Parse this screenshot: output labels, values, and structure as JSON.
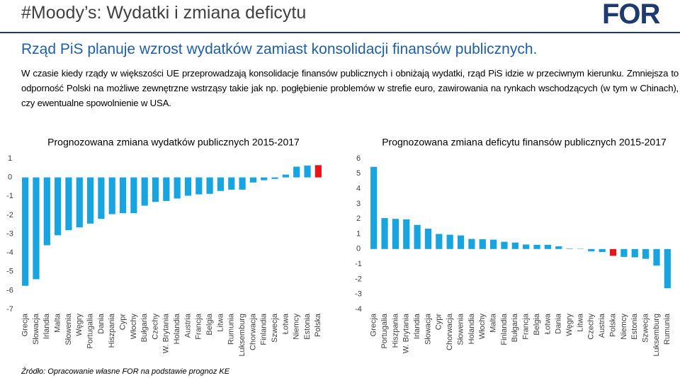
{
  "header": {
    "title": "#Moody’s: Wydatki i zmiana deficytu",
    "logo": "FOR",
    "subtitle": "Rząd PiS planuje wzrost wydatków zamiast konsolidacji finansów publicznych.",
    "body": "W czasie kiedy rządy w większości UE przeprowadzają konsolidacje finansów publicznych i obniżają wydatki, rząd PiS idzie w przeciwnym kierunku. Zmniejsza to odporność Polski na możliwe zewnętrzne wstrząsy takie jak np. pogłębienie problemów w strefie euro, zawirowania na rynkach wschodzących (w tym w Chinach), czy ewentualne spowolnienie w USA.",
    "source": "Źródło: Opracowanie własne FOR na podstawie prognoz KE"
  },
  "chart_data": [
    {
      "type": "bar",
      "title": "Prognozowana zmiana wydatków publicznych 2015-2017",
      "categories": [
        "Grecja",
        "Słowacja",
        "Irlandia",
        "Malta",
        "Słowenia",
        "Węgry",
        "Portugalia",
        "Dania",
        "Hiszpania",
        "Cypr",
        "Włochy",
        "Bułgaria",
        "Czechy",
        "W. Brytania",
        "Holandia",
        "Austria",
        "Francja",
        "Belgia",
        "Litwa",
        "Rumunia",
        "Luksemburg",
        "Chorwacja",
        "Finlandia",
        "Szwecja",
        "Łotwa",
        "Niemcy",
        "Estonia",
        "Polska"
      ],
      "values": [
        -5.75,
        -5.4,
        -3.6,
        -3.07,
        -2.8,
        -2.65,
        -2.45,
        -2.2,
        -1.95,
        -1.9,
        -1.9,
        -1.5,
        -1.3,
        -1.25,
        -1.12,
        -0.97,
        -0.9,
        -0.87,
        -0.72,
        -0.65,
        -0.65,
        -0.27,
        -0.15,
        -0.08,
        0.15,
        0.57,
        0.63,
        0.65
      ],
      "color": "#18a4e0",
      "highlight_color": "#e8141b",
      "highlight": "Polska",
      "ylim": [
        -7,
        1
      ],
      "yticks": [
        -7,
        -6,
        -5,
        -4,
        -3,
        -2,
        -1,
        0,
        1
      ]
    },
    {
      "type": "bar",
      "title": "Prognozowana zmiana deficytu finansów publicznych 2015-2017",
      "categories": [
        "Grecja",
        "Portugalia",
        "Hiszpania",
        "W. Brytania",
        "Irlandia",
        "Słowacja",
        "Cypr",
        "Chorwacja",
        "Słowenia",
        "Holandia",
        "Włochy",
        "Malta",
        "Finlandia",
        "Bułgaria",
        "Francja",
        "Belgia",
        "Łotwa",
        "Dania",
        "Węgry",
        "Litwa",
        "Czechy",
        "Austria",
        "Polska",
        "Niemcy",
        "Estonia",
        "Szwecja",
        "Luksemburg",
        "Rumunia"
      ],
      "values": [
        5.45,
        2.05,
        2.0,
        1.97,
        1.6,
        1.35,
        1.0,
        0.95,
        0.9,
        0.67,
        0.65,
        0.62,
        0.48,
        0.43,
        0.3,
        0.28,
        0.28,
        0.18,
        0.03,
        0.02,
        -0.15,
        -0.2,
        -0.45,
        -0.52,
        -0.55,
        -0.65,
        -1.1,
        -2.6
      ],
      "color": "#18a4e0",
      "highlight_color": "#e8141b",
      "highlight": "Polska",
      "ylim": [
        -4,
        6
      ],
      "yticks": [
        -4,
        -3,
        -2,
        -1,
        0,
        1,
        2,
        3,
        4,
        5,
        6
      ]
    }
  ]
}
